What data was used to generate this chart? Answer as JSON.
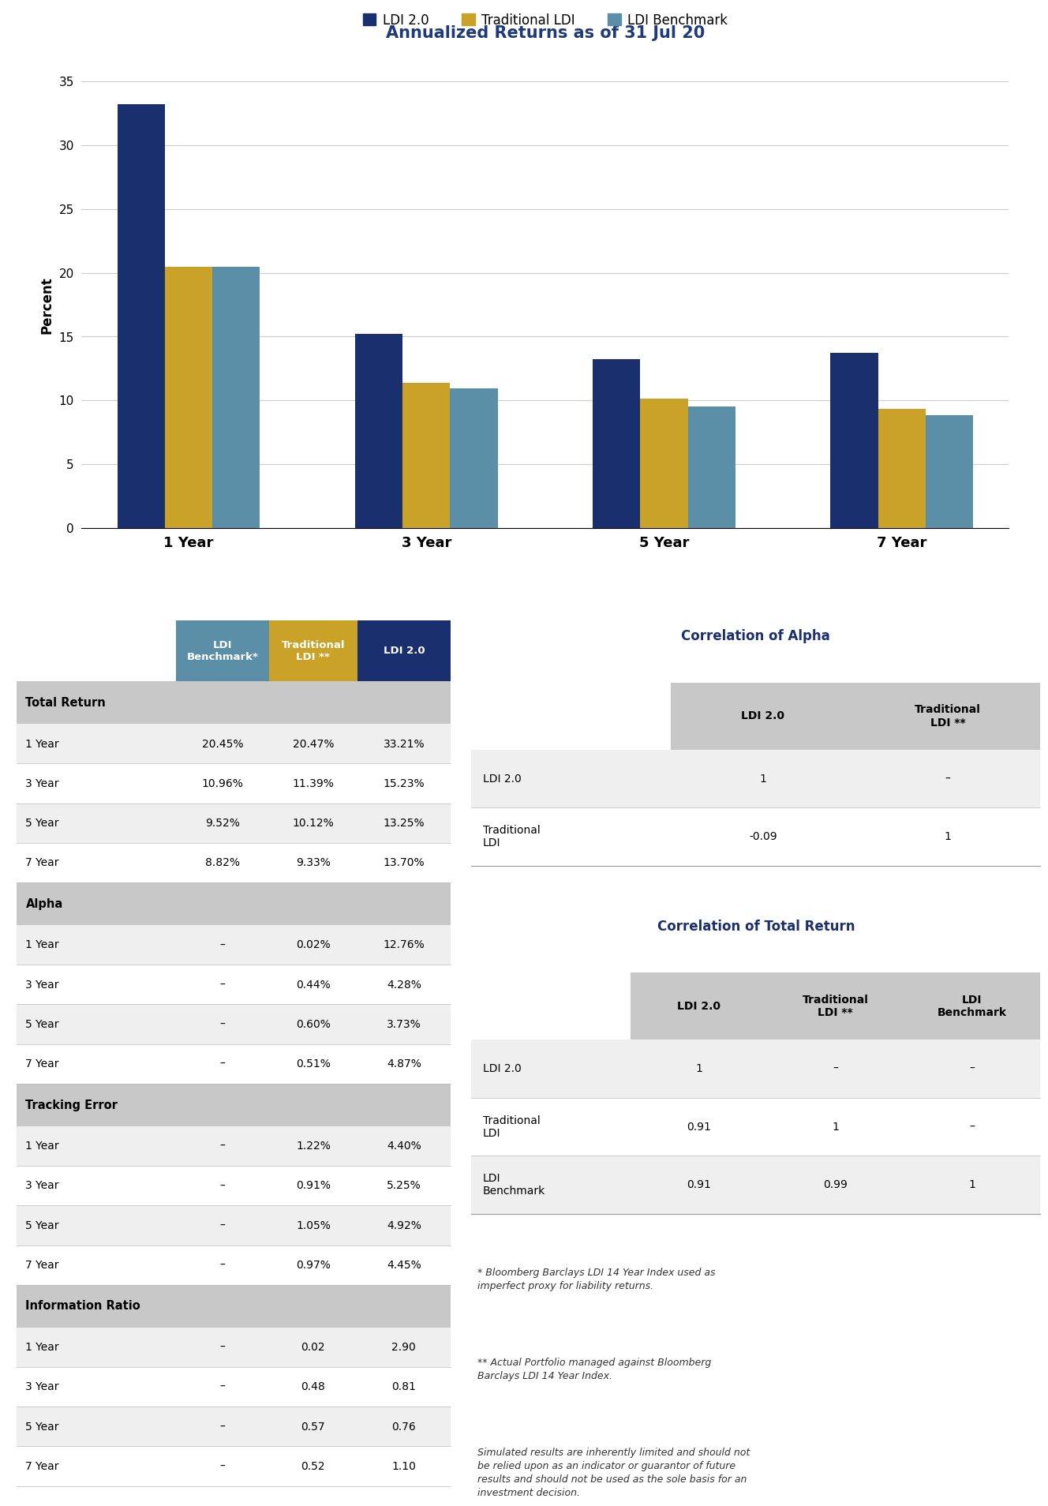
{
  "title": "Annualized Returns as of 31 Jul 20",
  "title_color": "#1f3a7a",
  "bar_categories": [
    "1 Year",
    "3 Year",
    "5 Year",
    "7 Year"
  ],
  "bar_ldi20": [
    33.21,
    15.23,
    13.25,
    13.7
  ],
  "bar_traditional": [
    20.47,
    11.39,
    10.12,
    9.33
  ],
  "bar_benchmark": [
    20.45,
    10.96,
    9.52,
    8.82
  ],
  "color_ldi20": "#1a2f6e",
  "color_traditional": "#c9a227",
  "color_benchmark": "#5b8fa8",
  "ylabel": "Percent",
  "ylim": [
    0,
    35
  ],
  "yticks": [
    0,
    5,
    10,
    15,
    20,
    25,
    30,
    35
  ],
  "legend_labels": [
    "LDI 2.0",
    "Traditional LDI",
    "LDI Benchmark"
  ],
  "table_header_bg_benchmark": "#5b8fa8",
  "table_header_bg_traditional": "#c9a227",
  "table_header_bg_ldi20": "#1a2f6e",
  "table_section_bg": "#c8c8c8",
  "table_row_bg_alt": "#efefef",
  "table_row_bg_white": "#ffffff",
  "table_headers": [
    "LDI\nBenchmark*",
    "Traditional\nLDI **",
    "LDI 2.0"
  ],
  "table_sections": [
    "Total Return",
    "Alpha",
    "Tracking Error",
    "Information Ratio"
  ],
  "table_row_labels": [
    [
      "1 Year",
      "3 Year",
      "5 Year",
      "7 Year"
    ],
    [
      "1 Year",
      "3 Year",
      "5 Year",
      "7 Year"
    ],
    [
      "1 Year",
      "3 Year",
      "5 Year",
      "7 Year"
    ],
    [
      "1 Year",
      "3 Year",
      "5 Year",
      "7 Year"
    ]
  ],
  "table_data": [
    [
      [
        "20.45%",
        "20.47%",
        "33.21%"
      ],
      [
        "10.96%",
        "11.39%",
        "15.23%"
      ],
      [
        "9.52%",
        "10.12%",
        "13.25%"
      ],
      [
        "8.82%",
        "9.33%",
        "13.70%"
      ]
    ],
    [
      [
        "–",
        "0.02%",
        "12.76%"
      ],
      [
        "–",
        "0.44%",
        "4.28%"
      ],
      [
        "–",
        "0.60%",
        "3.73%"
      ],
      [
        "–",
        "0.51%",
        "4.87%"
      ]
    ],
    [
      [
        "–",
        "1.22%",
        "4.40%"
      ],
      [
        "–",
        "0.91%",
        "5.25%"
      ],
      [
        "–",
        "1.05%",
        "4.92%"
      ],
      [
        "–",
        "0.97%",
        "4.45%"
      ]
    ],
    [
      [
        "–",
        "0.02",
        "2.90"
      ],
      [
        "–",
        "0.48",
        "0.81"
      ],
      [
        "–",
        "0.57",
        "0.76"
      ],
      [
        "–",
        "0.52",
        "1.10"
      ]
    ]
  ],
  "corr_alpha_title": "Correlation of Alpha",
  "corr_alpha_headers": [
    "",
    "LDI 2.0",
    "Traditional\nLDI **"
  ],
  "corr_alpha_rows": [
    [
      "LDI 2.0",
      "1",
      "–"
    ],
    [
      "Traditional\nLDI",
      "-0.09",
      "1"
    ]
  ],
  "corr_total_title": "Correlation of Total Return",
  "corr_total_headers": [
    "",
    "LDI 2.0",
    "Traditional\nLDI **",
    "LDI\nBenchmark"
  ],
  "corr_total_rows": [
    [
      "LDI 2.0",
      "1",
      "–",
      "–"
    ],
    [
      "Traditional\nLDI",
      "0.91",
      "1",
      "–"
    ],
    [
      "LDI\nBenchmark",
      "0.91",
      "0.99",
      "1"
    ]
  ],
  "footnote1": "* Bloomberg Barclays LDI 14 Year Index used as\nimperfect proxy for liability returns.",
  "footnote2": "** Actual Portfolio managed against Bloomberg\nBarclays LDI 14 Year Index.",
  "footnote3": "Simulated results are inherently limited and should not\nbe relied upon as an indicator or guarantor of future\nresults and should not be used as the sole basis for an\ninvestment decision."
}
